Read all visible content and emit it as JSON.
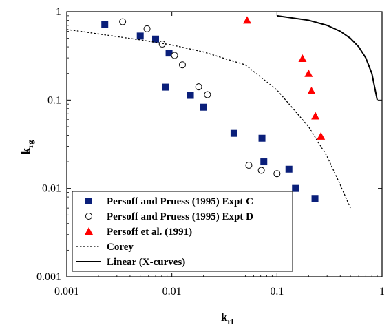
{
  "chart_data": {
    "type": "scatter",
    "x_scale": "log",
    "y_scale": "log",
    "xlim": [
      0.001,
      1
    ],
    "ylim": [
      0.001,
      1
    ],
    "xticks": [
      0.001,
      0.01,
      0.1,
      1
    ],
    "yticks": [
      0.001,
      0.01,
      0.1,
      1
    ],
    "xtick_labels": [
      "0.001",
      "0.01",
      "0.1",
      "1"
    ],
    "ytick_labels": [
      "0.001",
      "0.01",
      "0.1",
      "1"
    ],
    "xlabel": {
      "main": "k",
      "sub": "rl"
    },
    "ylabel": {
      "main": "k",
      "sub": "rg"
    },
    "grid": false,
    "legend_position": "bottom-left",
    "series": [
      {
        "name": "Persoff and Pruess (1995) Expt C",
        "marker": "square",
        "color": "#0a1f7a",
        "points": [
          [
            0.0023,
            0.72
          ],
          [
            0.005,
            0.53
          ],
          [
            0.007,
            0.49
          ],
          [
            0.0094,
            0.34
          ],
          [
            0.0087,
            0.14
          ],
          [
            0.015,
            0.113
          ],
          [
            0.02,
            0.083
          ],
          [
            0.039,
            0.042
          ],
          [
            0.072,
            0.037
          ],
          [
            0.075,
            0.02
          ],
          [
            0.13,
            0.0165
          ],
          [
            0.15,
            0.01
          ],
          [
            0.23,
            0.0077
          ]
        ]
      },
      {
        "name": "Persoff and Pruess (1995) Expt D",
        "marker": "circle-open",
        "color": "#000000",
        "points": [
          [
            0.0034,
            0.77
          ],
          [
            0.0058,
            0.64
          ],
          [
            0.0081,
            0.43
          ],
          [
            0.0106,
            0.32
          ],
          [
            0.0126,
            0.25
          ],
          [
            0.018,
            0.141
          ],
          [
            0.0218,
            0.115
          ],
          [
            0.054,
            0.0183
          ],
          [
            0.071,
            0.016
          ],
          [
            0.1,
            0.0147
          ]
        ]
      },
      {
        "name": "Persoff et al. (1991)",
        "marker": "triangle",
        "color": "#ff0000",
        "points": [
          [
            0.052,
            0.8
          ],
          [
            0.175,
            0.295
          ],
          [
            0.2,
            0.2
          ],
          [
            0.213,
            0.127
          ],
          [
            0.232,
            0.066
          ],
          [
            0.262,
            0.039
          ]
        ]
      },
      {
        "name": "Corey",
        "marker": "line-dotted",
        "color": "#000000",
        "points": [
          [
            0.001,
            0.63
          ],
          [
            0.002,
            0.56
          ],
          [
            0.005,
            0.48
          ],
          [
            0.01,
            0.42
          ],
          [
            0.02,
            0.35
          ],
          [
            0.05,
            0.25
          ],
          [
            0.1,
            0.13
          ],
          [
            0.2,
            0.05
          ],
          [
            0.3,
            0.023
          ],
          [
            0.4,
            0.011
          ],
          [
            0.5,
            0.006
          ]
        ]
      },
      {
        "name": "Linear (X-curves)",
        "marker": "line-solid",
        "color": "#000000",
        "points": [
          [
            0.1,
            0.9
          ],
          [
            0.2,
            0.8
          ],
          [
            0.3,
            0.7
          ],
          [
            0.4,
            0.6
          ],
          [
            0.5,
            0.5
          ],
          [
            0.6,
            0.4
          ],
          [
            0.7,
            0.3
          ],
          [
            0.8,
            0.2
          ],
          [
            0.9,
            0.1
          ]
        ]
      }
    ]
  }
}
